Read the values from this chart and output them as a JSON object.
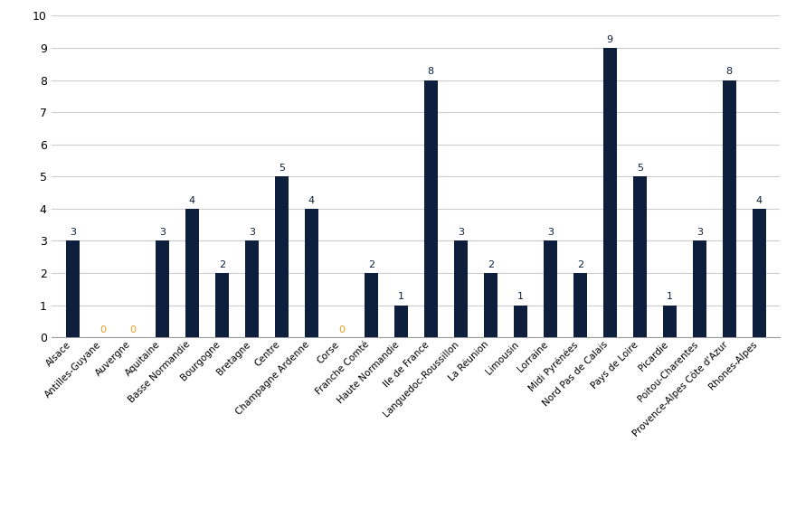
{
  "categories": [
    "Alsace",
    "Antilles-Guyane",
    "Auvergne",
    "Aquitaine",
    "Basse Normandie",
    "Bourgogne",
    "Bretagne",
    "Centre",
    "Champagne Ardenne",
    "Corse",
    "Franche Comté",
    "Haute Normandie",
    "Ile de France",
    "Languedoc-Roussillon",
    "La Réunion",
    "Limousin",
    "Lorraine",
    "Midi Pyrénées",
    "Nord Pas de Calais",
    "Pays de Loire",
    "Picardie",
    "Poitou-Charentes",
    "Provence-Alpes Côte d'Azur",
    "Rhones-Alpes"
  ],
  "values": [
    3,
    0,
    0,
    3,
    4,
    2,
    3,
    5,
    4,
    0,
    2,
    1,
    8,
    3,
    2,
    1,
    3,
    2,
    9,
    5,
    1,
    3,
    8,
    4
  ],
  "bar_color": "#0d1f3c",
  "label_color_nonzero": "#0d1f3c",
  "label_color_zero": "#e8a020",
  "ylim": [
    0,
    10
  ],
  "yticks": [
    0,
    1,
    2,
    3,
    4,
    5,
    6,
    7,
    8,
    9,
    10
  ],
  "background_color": "#ffffff",
  "grid_color": "#cccccc",
  "bar_width": 0.45,
  "label_fontsize": 8.0,
  "tick_fontsize": 9.0,
  "xtick_fontsize": 7.5
}
